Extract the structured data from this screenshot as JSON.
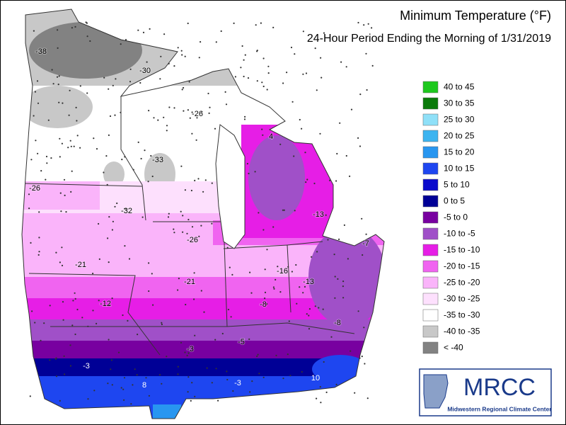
{
  "title": "Minimum Temperature (°F)",
  "subtitle": "24-Hour Period Ending the Morning of 1/31/2019",
  "legend": [
    {
      "label": "40 to 45",
      "color": "#1ec81e"
    },
    {
      "label": "30 to 35",
      "color": "#0a7a0a"
    },
    {
      "label": "25 to 30",
      "color": "#8fe0f8"
    },
    {
      "label": "20 to 25",
      "color": "#3cb4f0"
    },
    {
      "label": "15 to 20",
      "color": "#2896f0"
    },
    {
      "label": "10 to 15",
      "color": "#1e46f0"
    },
    {
      "label": "5 to 10",
      "color": "#0a0acc"
    },
    {
      "label": "0 to 5",
      "color": "#000096"
    },
    {
      "label": "-5 to 0",
      "color": "#7800a0"
    },
    {
      "label": "-10 to -5",
      "color": "#a050c8"
    },
    {
      "label": "-15 to -10",
      "color": "#e61ee6"
    },
    {
      "label": "-20 to -15",
      "color": "#f064f0"
    },
    {
      "label": "-25 to -20",
      "color": "#fab4fa"
    },
    {
      "label": "-30 to -25",
      "color": "#fde0fd"
    },
    {
      "label": "-35 to -30",
      "color": "#ffffff"
    },
    {
      "label": "-40 to -35",
      "color": "#c8c8c8"
    },
    {
      "label": "< -40",
      "color": "#828282"
    }
  ],
  "station_values": [
    -38,
    -30,
    -26,
    -33,
    -26,
    -32,
    -26,
    -21,
    -21,
    -12,
    -16,
    -13,
    -13,
    -7,
    -8,
    -8,
    -5,
    -3,
    -3,
    -3,
    8,
    10,
    4
  ],
  "logo": {
    "title": "MRCC",
    "subtitle": "Midwestern Regional Climate Center"
  }
}
